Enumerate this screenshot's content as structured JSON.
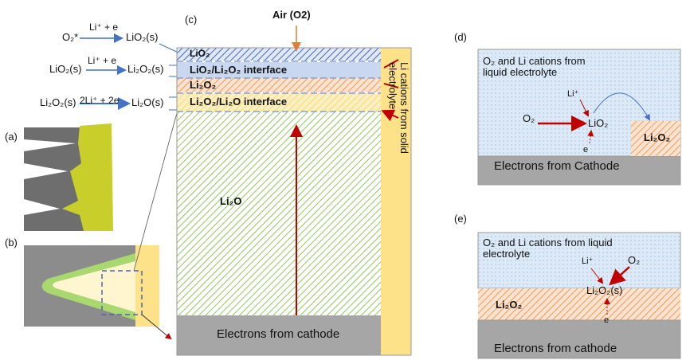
{
  "reactions": [
    {
      "reactant": "O₂*",
      "conditions": "Li⁺ + e",
      "product": "LiO₂(s)"
    },
    {
      "reactant": "LiO₂(s)",
      "conditions": "Li⁺ + e",
      "product": "Li₂O₂(s)"
    },
    {
      "reactant": "Li₂O₂(s)",
      "conditions": "2Li⁺ + 2e",
      "product": "Li₂O(s)"
    }
  ],
  "panels": {
    "a": {
      "label": "(a)"
    },
    "b": {
      "label": "(b)"
    },
    "c": {
      "label": "(c)",
      "air": "Air (O2)",
      "layers": [
        "LiO₂",
        "LiO₂/Li₂O₂ interface",
        "Li₂O₂",
        "Li₂O₂/Li₂O interface"
      ],
      "bulk": "Li₂O",
      "bottom": "Electrons from cathode",
      "side": "Li cations from solid electrolyte"
    },
    "d": {
      "label": "(d)",
      "top": "O₂ and Li cations from liquid electrolyte",
      "li": "Li⁺",
      "o2": "O₂",
      "product": "LiO₂",
      "e": "e",
      "deposit": "Li₂O₂",
      "bottom": "Electrons from Cathode"
    },
    "e": {
      "label": "(e)",
      "top": "O₂ and Li cations from liquid electrolyte",
      "li": "Li⁺",
      "o2": "O₂",
      "product": "Li₂O₂(s)",
      "layer": "Li₂O₂",
      "e": "e",
      "bottom": "Electrons from cathode"
    }
  }
}
